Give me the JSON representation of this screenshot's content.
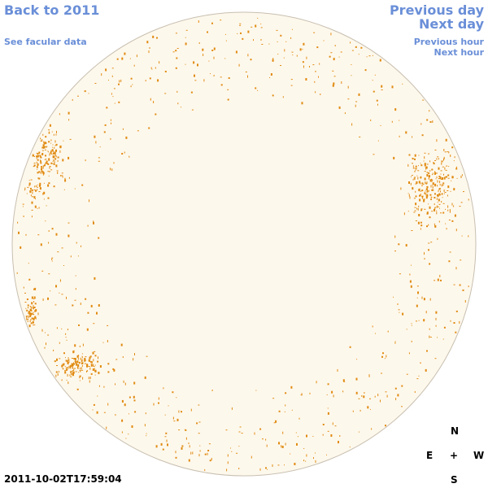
{
  "nav": {
    "back_year": "Back to 2011",
    "facular": "See facular data",
    "prev_day": "Previous day",
    "next_day": "Next day",
    "prev_hour": "Previous hour",
    "next_hour": "Next hour"
  },
  "compass": {
    "north": "N",
    "south": "S",
    "east": "E",
    "west": "W",
    "center": "+"
  },
  "timestamp": "2011-10-02T17:59:04",
  "colors": {
    "disk_fill": "#fdf8ec",
    "disk_stroke": "#c8bfb0",
    "facula": "#e08a10",
    "link": "#6a8fd8"
  }
}
